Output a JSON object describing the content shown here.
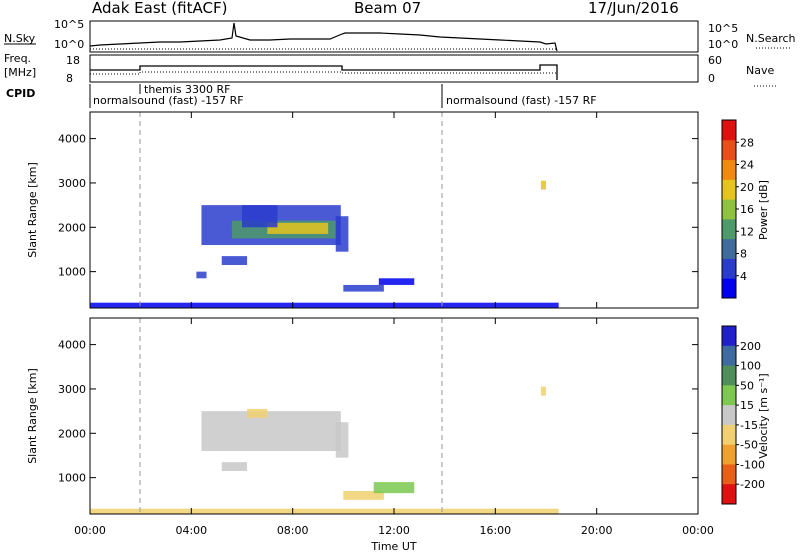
{
  "header": {
    "site": "Adak East (fitACF)",
    "beam": "Beam 07",
    "date": "17/Jun/2016"
  },
  "param_panels": {
    "nsky_label": "N.Sky",
    "nsearch_label": "N.Search",
    "freq_label_1": "Freq.",
    "freq_label_2": "[MHz]",
    "nave_label": "Nave",
    "cpid_label": "CPID",
    "nsky_ticks": [
      "10^5",
      "10^0"
    ],
    "nsearch_ticks": [
      "10^5",
      "10^0"
    ],
    "freq_ticks": [
      "18",
      "8"
    ],
    "nave_ticks": [
      "60",
      "0"
    ],
    "cpid_segments": [
      {
        "label": "normalsound (fast) -157 RF",
        "start_hour": 0
      },
      {
        "label": "themis 3300 RF",
        "start_hour": 2
      },
      {
        "label": "normalsound (fast) -157 RF",
        "start_hour": 14
      }
    ]
  },
  "power_colorbar": {
    "title": "Power [dB]",
    "ticks": [
      "28",
      "24",
      "20",
      "16",
      "12",
      "8",
      "4"
    ],
    "colors": [
      "#0000ee",
      "#2a3ccc",
      "#3f6c9a",
      "#4e9a6a",
      "#8fc23e",
      "#e5c41e",
      "#f08a10",
      "#e8501a",
      "#e01010"
    ]
  },
  "velocity_colorbar": {
    "title": "Velocity [m s⁻¹]",
    "ticks": [
      "200",
      "100",
      "50",
      "15",
      "-15",
      "-50",
      "-100",
      "-200"
    ],
    "colors": [
      "#2020cc",
      "#3f6ca0",
      "#4e8f5c",
      "#7cc850",
      "#c8c8c8",
      "#f0d070",
      "#f0a030",
      "#e86018",
      "#e01010"
    ]
  },
  "axes": {
    "ylabel": "Slant Range [km]",
    "xlabel": "Time UT",
    "yticks": [
      "4000",
      "3000",
      "2000",
      "1000"
    ],
    "xticks": [
      "00:00",
      "04:00",
      "08:00",
      "12:00",
      "16:00",
      "20:00",
      "00:00"
    ]
  },
  "chart_data": [
    {
      "type": "heatmap",
      "title": "Power [dB]",
      "xlabel": "",
      "ylabel": "Slant Range [km]",
      "xlim": [
        0,
        24
      ],
      "ylim": [
        180,
        4600
      ],
      "clim": [
        2,
        30
      ],
      "regions": [
        {
          "x_range": [
            4.4,
            9.9
          ],
          "y_range": [
            1600,
            2500
          ],
          "value": 8
        },
        {
          "x_range": [
            5.6,
            9.7
          ],
          "y_range": [
            1750,
            2150
          ],
          "value": 14
        },
        {
          "x_range": [
            7.0,
            9.4
          ],
          "y_range": [
            1850,
            2100
          ],
          "value": 18
        },
        {
          "x_range": [
            6.0,
            7.4
          ],
          "y_range": [
            2000,
            2500
          ],
          "value": 8
        },
        {
          "x_range": [
            9.7,
            10.2
          ],
          "y_range": [
            1450,
            2250
          ],
          "value": 8
        },
        {
          "x_range": [
            5.2,
            6.2
          ],
          "y_range": [
            1150,
            1350
          ],
          "value": 6
        },
        {
          "x_range": [
            4.2,
            4.6
          ],
          "y_range": [
            850,
            1000
          ],
          "value": 6
        },
        {
          "x_range": [
            10.0,
            11.6
          ],
          "y_range": [
            550,
            700
          ],
          "value": 6
        },
        {
          "x_range": [
            11.4,
            12.8
          ],
          "y_range": [
            700,
            850
          ],
          "value": 5
        },
        {
          "x_range": [
            0.0,
            18.5
          ],
          "y_range": [
            180,
            300
          ],
          "value": 4
        },
        {
          "x_range": [
            17.8,
            18.0
          ],
          "y_range": [
            2850,
            3050
          ],
          "value": 20
        }
      ]
    },
    {
      "type": "heatmap",
      "title": "Velocity [m s⁻¹]",
      "xlabel": "Time UT",
      "ylabel": "Slant Range [km]",
      "xlim": [
        0,
        24
      ],
      "ylim": [
        180,
        4600
      ],
      "clim": [
        -250,
        250
      ],
      "regions": [
        {
          "x_range": [
            4.4,
            9.9
          ],
          "y_range": [
            1600,
            2500
          ],
          "value": 0
        },
        {
          "x_range": [
            6.2,
            7.0
          ],
          "y_range": [
            2350,
            2550
          ],
          "value": -30
        },
        {
          "x_range": [
            9.7,
            10.2
          ],
          "y_range": [
            1450,
            2250
          ],
          "value": -20
        },
        {
          "x_range": [
            5.2,
            6.2
          ],
          "y_range": [
            1150,
            1350
          ],
          "value": 10
        },
        {
          "x_range": [
            10.0,
            11.6
          ],
          "y_range": [
            500,
            700
          ],
          "value": -40
        },
        {
          "x_range": [
            11.2,
            12.8
          ],
          "y_range": [
            650,
            900
          ],
          "value": 30
        },
        {
          "x_range": [
            0.0,
            18.5
          ],
          "y_range": [
            180,
            300
          ],
          "value": -40
        },
        {
          "x_range": [
            17.8,
            18.0
          ],
          "y_range": [
            2850,
            3050
          ],
          "value": -80
        }
      ]
    }
  ]
}
